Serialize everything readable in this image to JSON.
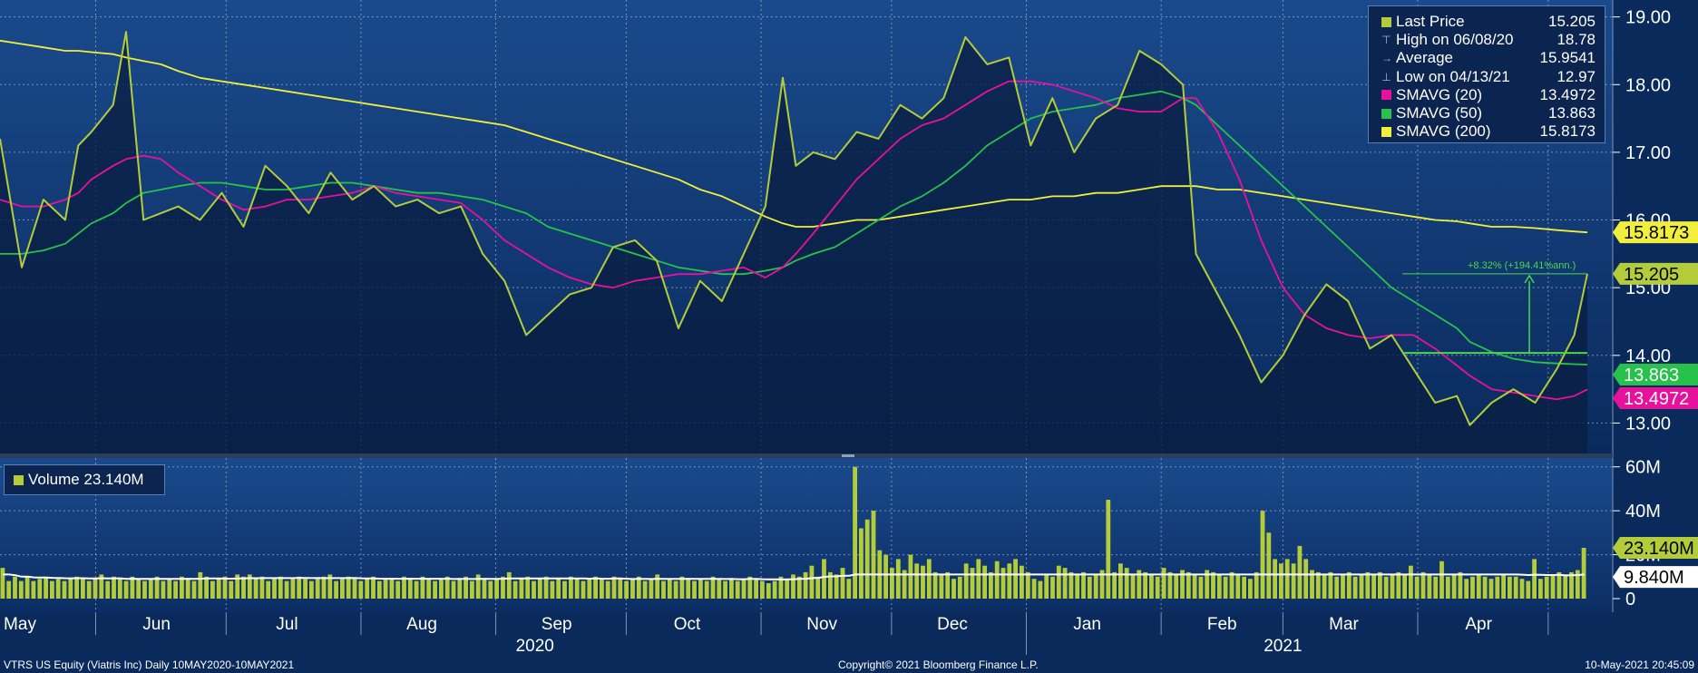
{
  "colors": {
    "background": "#0a2a5c",
    "last_price": "#b5cc3a",
    "sma20": "#e8119c",
    "sma50": "#27c24b",
    "sma200": "#f2ee3c",
    "volume": "#b5cc3a",
    "volume_avg": "#ffffff",
    "annotation": "#4cd84c"
  },
  "legend": {
    "items": [
      {
        "icon": "square",
        "color": "#b5cc3a",
        "label": "Last Price",
        "value": "15.205"
      },
      {
        "icon": "high-marker",
        "label": "High on 06/08/20",
        "value": "18.78"
      },
      {
        "icon": "average-marker",
        "label": "Average",
        "value": "15.9541"
      },
      {
        "icon": "low-marker",
        "label": "Low on 04/13/21",
        "value": "12.97"
      },
      {
        "icon": "square",
        "color": "#e8119c",
        "label": "SMAVG (20)",
        "value": "13.4972"
      },
      {
        "icon": "square",
        "color": "#27c24b",
        "label": "SMAVG (50)",
        "value": "13.863"
      },
      {
        "icon": "square",
        "color": "#f2ee3c",
        "label": "SMAVG (200)",
        "value": "15.8173"
      }
    ]
  },
  "volume_legend": {
    "label": "Volume 23.140M"
  },
  "annotation": {
    "text": "+8.32% (+194.41%ann.)"
  },
  "footer": {
    "left": "VTRS US Equity (Viatris Inc)  Daily 10MAY2020-10MAY2021",
    "center": "Copyright© 2021 Bloomberg Finance L.P.",
    "right": "10-May-2021 20:45:09"
  },
  "chart_data": [
    {
      "type": "line",
      "y_ticks": [
        "19.00",
        "18.00",
        "17.00",
        "16.00",
        "15.00",
        "14.00",
        "13.00"
      ],
      "ylim": [
        12.55,
        19.25
      ],
      "x_month_labels": [
        "May",
        "Jun",
        "Jul",
        "Aug",
        "Sep",
        "Oct",
        "Nov",
        "Dec",
        "Jan",
        "Feb",
        "Mar",
        "Apr"
      ],
      "x_year_labels": [
        "2020",
        "2021"
      ],
      "grid": true,
      "x_dates": [
        "2020-05-10",
        "2020-05-15",
        "2020-05-20",
        "2020-05-25",
        "2020-05-28",
        "2020-05-31",
        "2020-06-05",
        "2020-06-08",
        "2020-06-12",
        "2020-06-16",
        "2020-06-20",
        "2020-06-25",
        "2020-06-30",
        "2020-07-05",
        "2020-07-10",
        "2020-07-15",
        "2020-07-20",
        "2020-07-25",
        "2020-07-30",
        "2020-08-04",
        "2020-08-09",
        "2020-08-14",
        "2020-08-19",
        "2020-08-24",
        "2020-08-29",
        "2020-09-03",
        "2020-09-08",
        "2020-09-13",
        "2020-09-18",
        "2020-09-23",
        "2020-09-28",
        "2020-10-03",
        "2020-10-08",
        "2020-10-13",
        "2020-10-18",
        "2020-10-23",
        "2020-10-28",
        "2020-11-02",
        "2020-11-06",
        "2020-11-09",
        "2020-11-13",
        "2020-11-18",
        "2020-11-23",
        "2020-11-28",
        "2020-12-03",
        "2020-12-08",
        "2020-12-13",
        "2020-12-18",
        "2020-12-23",
        "2020-12-28",
        "2021-01-02",
        "2021-01-07",
        "2021-01-12",
        "2021-01-17",
        "2021-01-22",
        "2021-01-27",
        "2021-02-01",
        "2021-02-06",
        "2021-02-09",
        "2021-02-14",
        "2021-02-19",
        "2021-02-24",
        "2021-03-01",
        "2021-03-06",
        "2021-03-11",
        "2021-03-16",
        "2021-03-21",
        "2021-03-26",
        "2021-03-31",
        "2021-04-05",
        "2021-04-10",
        "2021-04-13",
        "2021-04-18",
        "2021-04-23",
        "2021-04-28",
        "2021-05-03",
        "2021-05-07",
        "2021-05-10"
      ],
      "series": [
        {
          "name": "Last Price",
          "color": "#b5cc3a",
          "values": [
            17.2,
            15.3,
            16.3,
            16.0,
            17.1,
            17.3,
            17.7,
            18.78,
            16.0,
            16.1,
            16.2,
            16.0,
            16.4,
            15.9,
            16.8,
            16.5,
            16.1,
            16.7,
            16.3,
            16.5,
            16.2,
            16.3,
            16.1,
            16.2,
            15.5,
            15.1,
            14.3,
            14.6,
            14.9,
            15.0,
            15.6,
            15.7,
            15.4,
            14.4,
            15.1,
            14.8,
            15.5,
            16.2,
            18.1,
            16.8,
            17.0,
            16.9,
            17.3,
            17.2,
            17.7,
            17.5,
            17.8,
            18.7,
            18.3,
            18.4,
            17.1,
            17.8,
            17.0,
            17.5,
            17.7,
            18.5,
            18.3,
            18.0,
            15.5,
            14.9,
            14.3,
            13.6,
            14.0,
            14.6,
            15.05,
            14.8,
            14.1,
            14.3,
            13.8,
            13.3,
            13.4,
            12.97,
            13.3,
            13.5,
            13.3,
            13.8,
            14.3,
            15.205
          ]
        },
        {
          "name": "SMAVG (20)",
          "color": "#e8119c",
          "values": [
            16.3,
            16.2,
            16.2,
            16.3,
            16.4,
            16.6,
            16.8,
            16.9,
            16.95,
            16.9,
            16.7,
            16.5,
            16.3,
            16.15,
            16.2,
            16.3,
            16.3,
            16.35,
            16.4,
            16.5,
            16.4,
            16.35,
            16.3,
            16.25,
            16.0,
            15.7,
            15.5,
            15.3,
            15.15,
            15.05,
            15.0,
            15.1,
            15.15,
            15.2,
            15.2,
            15.25,
            15.3,
            15.15,
            15.3,
            15.5,
            15.8,
            16.2,
            16.6,
            16.9,
            17.2,
            17.4,
            17.5,
            17.7,
            17.9,
            18.05,
            18.05,
            18.0,
            17.9,
            17.8,
            17.65,
            17.6,
            17.6,
            17.8,
            17.8,
            17.3,
            16.6,
            15.7,
            15.0,
            14.6,
            14.4,
            14.3,
            14.25,
            14.3,
            14.3,
            14.1,
            13.85,
            13.7,
            13.5,
            13.45,
            13.4,
            13.35,
            13.4,
            13.4972
          ]
        },
        {
          "name": "SMAVG (50)",
          "color": "#27c24b",
          "values": [
            15.5,
            15.5,
            15.55,
            15.65,
            15.8,
            15.95,
            16.1,
            16.25,
            16.4,
            16.45,
            16.5,
            16.55,
            16.55,
            16.5,
            16.45,
            16.45,
            16.5,
            16.55,
            16.55,
            16.5,
            16.45,
            16.4,
            16.4,
            16.35,
            16.3,
            16.2,
            16.1,
            15.9,
            15.8,
            15.7,
            15.6,
            15.5,
            15.4,
            15.3,
            15.25,
            15.2,
            15.2,
            15.25,
            15.3,
            15.4,
            15.5,
            15.6,
            15.8,
            16.0,
            16.2,
            16.35,
            16.55,
            16.8,
            17.1,
            17.3,
            17.5,
            17.6,
            17.65,
            17.7,
            17.8,
            17.85,
            17.9,
            17.8,
            17.7,
            17.4,
            17.1,
            16.8,
            16.5,
            16.2,
            15.9,
            15.6,
            15.3,
            15.0,
            14.8,
            14.6,
            14.4,
            14.2,
            14.05,
            13.95,
            13.9,
            13.88,
            13.87,
            13.863
          ]
        },
        {
          "name": "SMAVG (200)",
          "color": "#f2ee3c",
          "values": [
            18.65,
            18.6,
            18.55,
            18.5,
            18.5,
            18.48,
            18.45,
            18.4,
            18.35,
            18.3,
            18.2,
            18.1,
            18.05,
            18.0,
            17.95,
            17.9,
            17.85,
            17.8,
            17.75,
            17.7,
            17.65,
            17.6,
            17.55,
            17.5,
            17.45,
            17.4,
            17.3,
            17.2,
            17.1,
            17.0,
            16.9,
            16.8,
            16.7,
            16.6,
            16.45,
            16.35,
            16.2,
            16.05,
            15.95,
            15.9,
            15.9,
            15.95,
            16.0,
            16.0,
            16.05,
            16.1,
            16.15,
            16.2,
            16.25,
            16.3,
            16.3,
            16.35,
            16.35,
            16.4,
            16.4,
            16.45,
            16.5,
            16.5,
            16.5,
            16.45,
            16.45,
            16.4,
            16.35,
            16.3,
            16.25,
            16.2,
            16.15,
            16.1,
            16.05,
            16.0,
            15.98,
            15.95,
            15.9,
            15.9,
            15.88,
            15.85,
            15.83,
            15.8173
          ]
        }
      ],
      "value_tags": [
        {
          "value": 15.8173,
          "text": "15.8173",
          "color": "#f2ee3c",
          "text_color": "#000000"
        },
        {
          "value": 15.205,
          "text": "15.205",
          "color": "#b5cc3a",
          "text_color": "#000000"
        },
        {
          "value": 13.863,
          "text": "13.863",
          "color": "#27c24b",
          "text_color": "#ffffff"
        },
        {
          "value": 13.4972,
          "text": "13.4972",
          "color": "#e8119c",
          "text_color": "#ffffff"
        }
      ]
    },
    {
      "type": "bar",
      "title": "Volume",
      "y_ticks": [
        "60M",
        "40M",
        "20M",
        "0"
      ],
      "ylim": [
        0,
        64
      ],
      "unit": "M",
      "average_line": 9.84,
      "values": [
        14,
        8,
        10,
        8,
        10,
        8,
        9,
        10,
        8,
        9,
        8,
        9,
        10,
        9,
        8,
        9,
        11,
        8,
        10,
        9,
        8,
        10,
        9,
        8,
        9,
        10,
        8,
        9,
        8,
        10,
        9,
        8,
        12,
        10,
        8,
        9,
        10,
        8,
        11,
        10,
        11,
        9,
        10,
        8,
        9,
        10,
        8,
        9,
        10,
        9,
        8,
        9,
        10,
        11,
        8,
        9,
        10,
        9,
        8,
        9,
        10,
        8,
        9,
        9,
        8,
        10,
        9,
        8,
        10,
        9,
        8,
        9,
        10,
        8,
        9,
        10,
        8,
        11,
        9,
        8,
        9,
        10,
        12,
        8,
        9,
        10,
        8,
        9,
        10,
        8,
        9,
        8,
        10,
        9,
        8,
        9,
        10,
        9,
        8,
        10,
        9,
        8,
        9,
        10,
        8,
        9,
        11,
        8,
        9,
        8,
        10,
        9,
        8,
        9,
        8,
        10,
        9,
        8,
        9,
        8,
        9,
        10,
        9,
        8,
        7,
        8,
        10,
        9,
        11,
        10,
        12,
        15,
        10,
        18,
        12,
        11,
        14,
        9,
        60,
        32,
        36,
        40,
        22,
        20,
        14,
        18,
        13,
        20,
        16,
        15,
        18,
        12,
        11,
        12,
        9,
        10,
        16,
        14,
        18,
        15,
        12,
        17,
        14,
        16,
        18,
        15,
        12,
        9,
        8,
        11,
        10,
        15,
        14,
        12,
        11,
        12,
        10,
        11,
        13,
        45,
        12,
        16,
        14,
        11,
        13,
        12,
        11,
        10,
        14,
        12,
        11,
        13,
        12,
        11,
        10,
        13,
        12,
        11,
        10,
        12,
        11,
        10,
        9,
        12,
        40,
        30,
        18,
        16,
        18,
        16,
        24,
        18,
        13,
        12,
        11,
        12,
        10,
        11,
        12,
        10,
        11,
        12,
        11,
        12,
        10,
        11,
        12,
        11,
        15,
        10,
        12,
        11,
        10,
        17,
        10,
        11,
        12,
        9,
        10,
        11,
        10,
        9,
        10,
        11,
        10,
        10,
        9,
        8,
        18,
        9,
        10,
        11,
        12,
        11,
        12,
        13,
        23.14
      ],
      "value_tags": [
        {
          "value": 23.14,
          "text": "23.140M",
          "color": "#b5cc3a",
          "text_color": "#000000"
        },
        {
          "value": 9.84,
          "text": "9.840M",
          "color": "#ffffff",
          "text_color": "#000000"
        }
      ]
    }
  ]
}
